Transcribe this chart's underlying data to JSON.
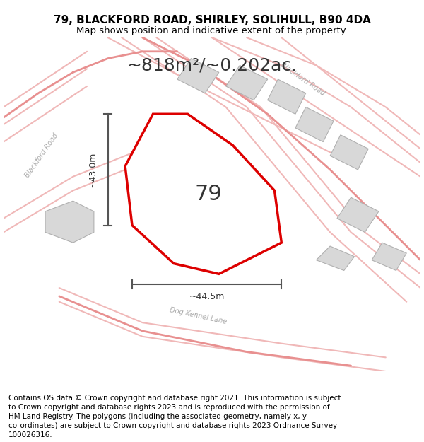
{
  "title": "79, BLACKFORD ROAD, SHIRLEY, SOLIHULL, B90 4DA",
  "subtitle": "Map shows position and indicative extent of the property.",
  "area_text": "~818m²/~0.202ac.",
  "label_79": "79",
  "dim_vertical": "~43.0m",
  "dim_horizontal": "~44.5m",
  "footer": "Contains OS data © Crown copyright and database right 2021. This information is subject to Crown copyright and database rights 2023 and is reproduced with the permission of HM Land Registry. The polygons (including the associated geometry, namely x, y co-ordinates) are subject to Crown copyright and database rights 2023 Ordnance Survey 100026316.",
  "bg_color": "#f5f5f5",
  "map_bg": "#ffffff",
  "road_color_light": "#f5c0c0",
  "road_color_medium": "#e8a0a0",
  "building_color": "#d8d8d8",
  "property_outline_color": "#dd0000",
  "dim_line_color": "#555555",
  "title_fontsize": 11,
  "subtitle_fontsize": 9.5,
  "area_fontsize": 18,
  "label_fontsize": 22,
  "footer_fontsize": 7.5,
  "dim_fontsize": 9
}
